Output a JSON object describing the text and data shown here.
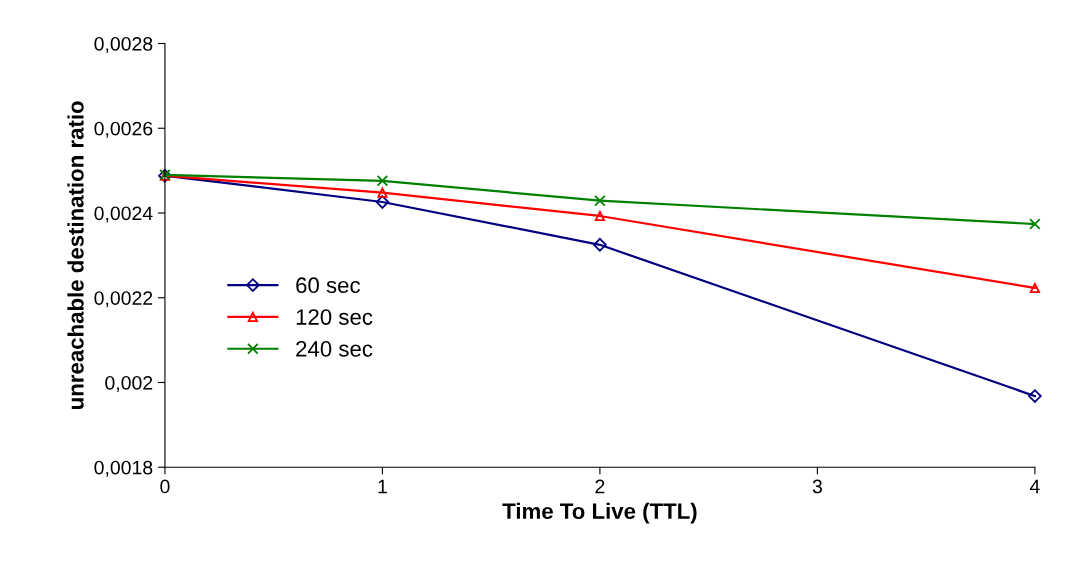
{
  "chart_data": {
    "type": "line",
    "xlabel": "Time To Live (TTL)",
    "ylabel": "unreachable destination ratio",
    "x": [
      0,
      1,
      2,
      4
    ],
    "series": [
      {
        "name": "60 sec",
        "color": "#000080",
        "marker": "diamond",
        "values": [
          0.002488,
          0.002426,
          0.002325,
          0.001968
        ]
      },
      {
        "name": "120 sec",
        "color": "#ff0000",
        "marker": "triangle",
        "values": [
          0.002488,
          0.002448,
          0.002393,
          0.002223
        ]
      },
      {
        "name": "240 sec",
        "color": "#008000",
        "marker": "cross",
        "values": [
          0.00249,
          0.002476,
          0.002429,
          0.002374
        ]
      }
    ],
    "xlim": [
      0,
      4
    ],
    "xticks": [
      0,
      1,
      2,
      3,
      4
    ],
    "ylim": [
      0.0018,
      0.0028
    ],
    "yticks": [
      {
        "value": 0.0018,
        "label": "0,0018"
      },
      {
        "value": 0.002,
        "label": "0,002"
      },
      {
        "value": 0.0022,
        "label": "0,0022"
      },
      {
        "value": 0.0024,
        "label": "0,0024"
      },
      {
        "value": 0.0026,
        "label": "0,0026"
      },
      {
        "value": 0.0028,
        "label": "0,0028"
      }
    ],
    "grid": false,
    "legend": "left",
    "line_style": "solid"
  }
}
